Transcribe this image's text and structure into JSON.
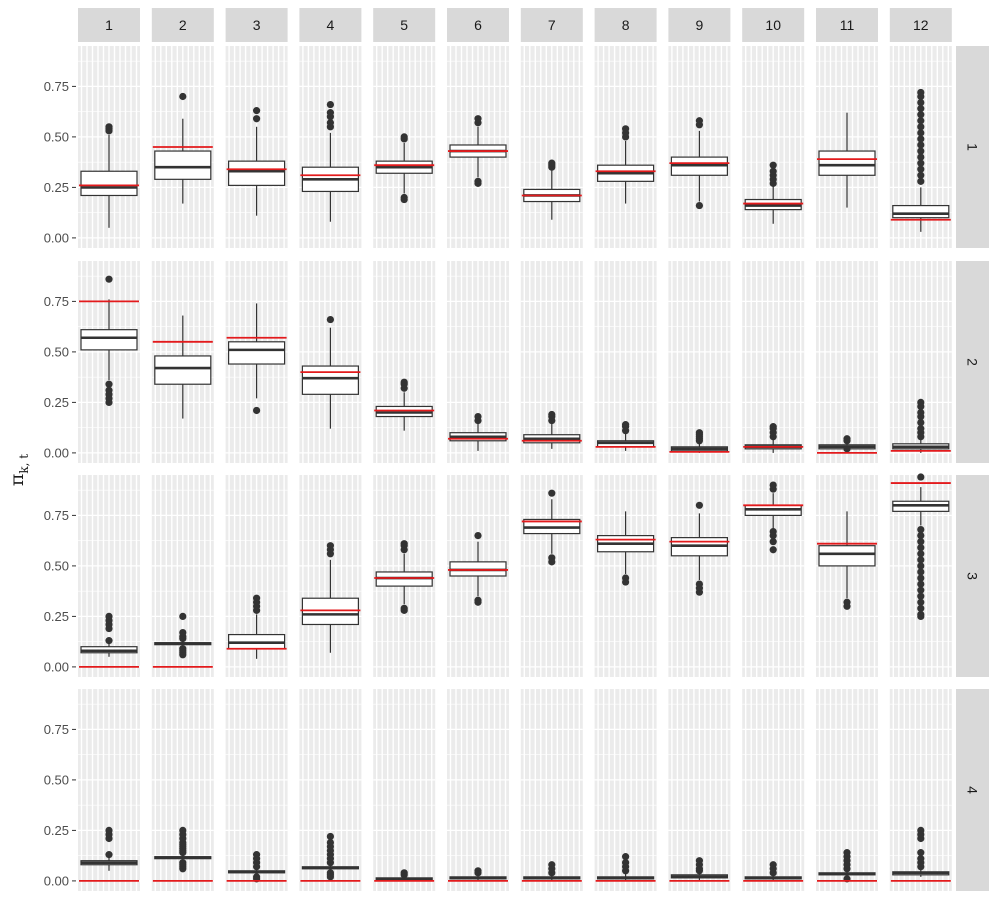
{
  "chart_data": {
    "type": "boxplot",
    "title": "",
    "xlabel": "",
    "ylabel": "π",
    "ylabel_subscript": "k, t",
    "ylim": [
      -0.05,
      0.95
    ],
    "yticks": [
      0,
      0.25,
      0.5,
      0.75
    ],
    "ytick_labels": [
      "0.00",
      "0.25",
      "0.50",
      "0.75"
    ],
    "column_labels": [
      "1",
      "2",
      "3",
      "4",
      "5",
      "6",
      "7",
      "8",
      "9",
      "10",
      "11",
      "12"
    ],
    "row_labels": [
      "1",
      "2",
      "3",
      "4"
    ],
    "grid": true,
    "colors": {
      "panel_bg": "#ebebeb",
      "strip_bg": "#d9d9d9",
      "grid": "#ffffff",
      "box": "#333333",
      "reference_line": "#e31a1c"
    },
    "panels": [
      [
        {
          "q1": 0.21,
          "median": 0.25,
          "q3": 0.33,
          "wlo": 0.05,
          "whi": 0.51,
          "outliers": [
            0.53,
            0.54,
            0.55
          ],
          "ref": 0.26
        },
        {
          "q1": 0.29,
          "median": 0.35,
          "q3": 0.43,
          "wlo": 0.17,
          "whi": 0.59,
          "outliers": [
            0.7
          ],
          "ref": 0.45
        },
        {
          "q1": 0.26,
          "median": 0.33,
          "q3": 0.38,
          "wlo": 0.11,
          "whi": 0.55,
          "outliers": [
            0.59,
            0.63
          ],
          "ref": 0.34
        },
        {
          "q1": 0.23,
          "median": 0.29,
          "q3": 0.35,
          "wlo": 0.08,
          "whi": 0.52,
          "outliers": [
            0.55,
            0.57,
            0.6,
            0.62,
            0.66
          ],
          "ref": 0.31
        },
        {
          "q1": 0.32,
          "median": 0.35,
          "q3": 0.38,
          "wlo": 0.22,
          "whi": 0.47,
          "outliers": [
            0.49,
            0.5,
            0.2,
            0.19
          ],
          "ref": 0.36
        },
        {
          "q1": 0.4,
          "median": 0.43,
          "q3": 0.46,
          "wlo": 0.3,
          "whi": 0.55,
          "outliers": [
            0.57,
            0.59,
            0.28,
            0.27
          ],
          "ref": 0.43
        },
        {
          "q1": 0.18,
          "median": 0.21,
          "q3": 0.24,
          "wlo": 0.09,
          "whi": 0.34,
          "outliers": [
            0.35,
            0.36,
            0.37
          ],
          "ref": 0.21
        },
        {
          "q1": 0.28,
          "median": 0.32,
          "q3": 0.36,
          "wlo": 0.17,
          "whi": 0.48,
          "outliers": [
            0.5,
            0.52,
            0.54
          ],
          "ref": 0.33
        },
        {
          "q1": 0.31,
          "median": 0.36,
          "q3": 0.4,
          "wlo": 0.18,
          "whi": 0.53,
          "outliers": [
            0.56,
            0.58,
            0.16
          ],
          "ref": 0.37
        },
        {
          "q1": 0.14,
          "median": 0.16,
          "q3": 0.19,
          "wlo": 0.07,
          "whi": 0.26,
          "outliers": [
            0.27,
            0.29,
            0.31,
            0.33,
            0.36
          ],
          "ref": 0.17
        },
        {
          "q1": 0.31,
          "median": 0.36,
          "q3": 0.43,
          "wlo": 0.15,
          "whi": 0.62,
          "outliers": [],
          "ref": 0.39
        },
        {
          "q1": 0.1,
          "median": 0.12,
          "q3": 0.16,
          "wlo": 0.03,
          "whi": 0.25,
          "outliers": [
            0.28,
            0.31,
            0.34,
            0.37,
            0.4,
            0.43,
            0.46,
            0.49,
            0.52,
            0.55,
            0.58,
            0.61,
            0.64,
            0.67,
            0.7,
            0.72
          ],
          "ref": 0.09
        }
      ],
      [
        {
          "q1": 0.51,
          "median": 0.57,
          "q3": 0.61,
          "wlo": 0.36,
          "whi": 0.76,
          "outliers": [
            0.86,
            0.34,
            0.31,
            0.29,
            0.27,
            0.25
          ],
          "ref": 0.75
        },
        {
          "q1": 0.34,
          "median": 0.42,
          "q3": 0.48,
          "wlo": 0.17,
          "whi": 0.68,
          "outliers": [],
          "ref": 0.55
        },
        {
          "q1": 0.44,
          "median": 0.51,
          "q3": 0.55,
          "wlo": 0.27,
          "whi": 0.74,
          "outliers": [
            0.21
          ],
          "ref": 0.57
        },
        {
          "q1": 0.29,
          "median": 0.37,
          "q3": 0.43,
          "wlo": 0.12,
          "whi": 0.62,
          "outliers": [
            0.66
          ],
          "ref": 0.4
        },
        {
          "q1": 0.18,
          "median": 0.2,
          "q3": 0.23,
          "wlo": 0.11,
          "whi": 0.3,
          "outliers": [
            0.32,
            0.34,
            0.35
          ],
          "ref": 0.21
        },
        {
          "q1": 0.06,
          "median": 0.08,
          "q3": 0.1,
          "wlo": 0.01,
          "whi": 0.15,
          "outliers": [
            0.16,
            0.18
          ],
          "ref": 0.07
        },
        {
          "q1": 0.05,
          "median": 0.07,
          "q3": 0.09,
          "wlo": 0.02,
          "whi": 0.15,
          "outliers": [
            0.16,
            0.18,
            0.19
          ],
          "ref": 0.06
        },
        {
          "q1": 0.03,
          "median": 0.05,
          "q3": 0.06,
          "wlo": 0.01,
          "whi": 0.1,
          "outliers": [
            0.11,
            0.13,
            0.14
          ],
          "ref": 0.03
        },
        {
          "q1": 0.01,
          "median": 0.02,
          "q3": 0.03,
          "wlo": 0.0,
          "whi": 0.05,
          "outliers": [
            0.06,
            0.07,
            0.08,
            0.09,
            0.1
          ],
          "ref": 0.005
        },
        {
          "q1": 0.02,
          "median": 0.03,
          "q3": 0.04,
          "wlo": 0.0,
          "whi": 0.07,
          "outliers": [
            0.08,
            0.1,
            0.12,
            0.13
          ],
          "ref": 0.03
        },
        {
          "q1": 0.02,
          "median": 0.03,
          "q3": 0.04,
          "wlo": 0.01,
          "whi": 0.05,
          "outliers": [
            0.06,
            0.07,
            0.02
          ],
          "ref": 0.0
        },
        {
          "q1": 0.02,
          "median": 0.03,
          "q3": 0.045,
          "wlo": 0.0,
          "whi": 0.07,
          "outliers": [
            0.08,
            0.1,
            0.12,
            0.15,
            0.18,
            0.2,
            0.23,
            0.25
          ],
          "ref": 0.01
        }
      ],
      [
        {
          "q1": 0.07,
          "median": 0.08,
          "q3": 0.1,
          "wlo": 0.05,
          "whi": 0.12,
          "outliers": [
            0.13,
            0.19,
            0.21,
            0.23,
            0.25
          ],
          "ref": 0.0
        },
        {
          "q1": 0.11,
          "median": 0.115,
          "q3": 0.12,
          "wlo": 0.1,
          "whi": 0.13,
          "outliers": [
            0.06,
            0.07,
            0.08,
            0.09,
            0.14,
            0.15,
            0.17,
            0.25
          ],
          "ref": 0.0
        },
        {
          "q1": 0.09,
          "median": 0.12,
          "q3": 0.16,
          "wlo": 0.04,
          "whi": 0.26,
          "outliers": [
            0.28,
            0.3,
            0.32,
            0.34
          ],
          "ref": 0.09
        },
        {
          "q1": 0.21,
          "median": 0.26,
          "q3": 0.34,
          "wlo": 0.07,
          "whi": 0.53,
          "outliers": [
            0.56,
            0.58,
            0.6
          ],
          "ref": 0.28
        },
        {
          "q1": 0.4,
          "median": 0.44,
          "q3": 0.47,
          "wlo": 0.31,
          "whi": 0.56,
          "outliers": [
            0.58,
            0.6,
            0.61,
            0.29,
            0.28
          ],
          "ref": 0.44
        },
        {
          "q1": 0.45,
          "median": 0.48,
          "q3": 0.52,
          "wlo": 0.35,
          "whi": 0.62,
          "outliers": [
            0.65,
            0.33,
            0.32
          ],
          "ref": 0.48
        },
        {
          "q1": 0.66,
          "median": 0.69,
          "q3": 0.73,
          "wlo": 0.56,
          "whi": 0.83,
          "outliers": [
            0.86,
            0.54,
            0.52
          ],
          "ref": 0.72
        },
        {
          "q1": 0.57,
          "median": 0.61,
          "q3": 0.65,
          "wlo": 0.46,
          "whi": 0.77,
          "outliers": [
            0.44,
            0.42
          ],
          "ref": 0.63
        },
        {
          "q1": 0.55,
          "median": 0.6,
          "q3": 0.64,
          "wlo": 0.43,
          "whi": 0.76,
          "outliers": [
            0.8,
            0.41,
            0.39,
            0.37
          ],
          "ref": 0.62
        },
        {
          "q1": 0.75,
          "median": 0.78,
          "q3": 0.8,
          "wlo": 0.68,
          "whi": 0.86,
          "outliers": [
            0.88,
            0.9,
            0.67,
            0.65,
            0.62,
            0.58
          ],
          "ref": 0.8
        },
        {
          "q1": 0.5,
          "median": 0.56,
          "q3": 0.6,
          "wlo": 0.34,
          "whi": 0.77,
          "outliers": [
            0.32,
            0.3
          ],
          "ref": 0.61
        },
        {
          "q1": 0.77,
          "median": 0.8,
          "q3": 0.82,
          "wlo": 0.7,
          "whi": 0.89,
          "outliers": [
            0.94,
            0.68,
            0.65,
            0.62,
            0.59,
            0.56,
            0.53,
            0.5,
            0.47,
            0.44,
            0.41,
            0.38,
            0.35,
            0.32,
            0.29,
            0.26,
            0.25
          ],
          "ref": 0.91
        }
      ],
      [
        {
          "q1": 0.08,
          "median": 0.09,
          "q3": 0.1,
          "wlo": 0.05,
          "whi": 0.12,
          "outliers": [
            0.13,
            0.21,
            0.23,
            0.25
          ],
          "ref": 0.0
        },
        {
          "q1": 0.11,
          "median": 0.115,
          "q3": 0.12,
          "wlo": 0.1,
          "whi": 0.13,
          "outliers": [
            0.06,
            0.07,
            0.08,
            0.09,
            0.14,
            0.15,
            0.16,
            0.17,
            0.18,
            0.19,
            0.21,
            0.23,
            0.25
          ],
          "ref": 0.0
        },
        {
          "q1": 0.04,
          "median": 0.045,
          "q3": 0.05,
          "wlo": 0.03,
          "whi": 0.06,
          "outliers": [
            0.07,
            0.09,
            0.11,
            0.13,
            0.02,
            0.01
          ],
          "ref": 0.0
        },
        {
          "q1": 0.06,
          "median": 0.065,
          "q3": 0.07,
          "wlo": 0.05,
          "whi": 0.08,
          "outliers": [
            0.09,
            0.11,
            0.13,
            0.15,
            0.17,
            0.19,
            0.22,
            0.04,
            0.03,
            0.02
          ],
          "ref": 0.0
        },
        {
          "q1": 0.005,
          "median": 0.01,
          "q3": 0.015,
          "wlo": 0.0,
          "whi": 0.02,
          "outliers": [
            0.03,
            0.04
          ],
          "ref": 0.0
        },
        {
          "q1": 0.01,
          "median": 0.015,
          "q3": 0.02,
          "wlo": 0.0,
          "whi": 0.03,
          "outliers": [
            0.04,
            0.05
          ],
          "ref": 0.0
        },
        {
          "q1": 0.01,
          "median": 0.015,
          "q3": 0.02,
          "wlo": 0.0,
          "whi": 0.03,
          "outliers": [
            0.04,
            0.06,
            0.08
          ],
          "ref": 0.0
        },
        {
          "q1": 0.01,
          "median": 0.015,
          "q3": 0.02,
          "wlo": 0.0,
          "whi": 0.04,
          "outliers": [
            0.05,
            0.07,
            0.09,
            0.12
          ],
          "ref": 0.0
        },
        {
          "q1": 0.015,
          "median": 0.02,
          "q3": 0.03,
          "wlo": 0.0,
          "whi": 0.04,
          "outliers": [
            0.05,
            0.06,
            0.08,
            0.1
          ],
          "ref": 0.0
        },
        {
          "q1": 0.01,
          "median": 0.015,
          "q3": 0.02,
          "wlo": 0.0,
          "whi": 0.03,
          "outliers": [
            0.04,
            0.06,
            0.08
          ],
          "ref": 0.0
        },
        {
          "q1": 0.03,
          "median": 0.035,
          "q3": 0.04,
          "wlo": 0.02,
          "whi": 0.05,
          "outliers": [
            0.06,
            0.08,
            0.1,
            0.12,
            0.14,
            0.01
          ],
          "ref": 0.0
        },
        {
          "q1": 0.03,
          "median": 0.04,
          "q3": 0.045,
          "wlo": 0.02,
          "whi": 0.06,
          "outliers": [
            0.07,
            0.09,
            0.11,
            0.14,
            0.21,
            0.23,
            0.25
          ],
          "ref": 0.0
        }
      ]
    ]
  }
}
